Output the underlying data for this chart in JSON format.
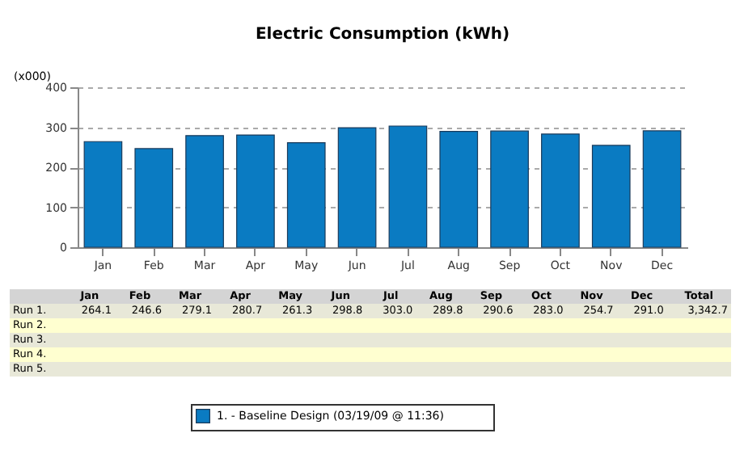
{
  "chart_data": {
    "type": "bar",
    "title": "Electric Consumption (kWh)",
    "ylabel": "(x000)",
    "categories": [
      "Jan",
      "Feb",
      "Mar",
      "Apr",
      "May",
      "Jun",
      "Jul",
      "Aug",
      "Sep",
      "Oct",
      "Nov",
      "Dec"
    ],
    "series": [
      {
        "name": "1.            - Baseline Design  (03/19/09 @ 11:36)",
        "color": "#0a7bc2",
        "values": [
          264.1,
          246.6,
          279.1,
          280.7,
          261.3,
          298.8,
          303.0,
          289.8,
          290.6,
          283.0,
          254.7,
          291.0
        ],
        "value_labels": [
          "264.1",
          "246.6",
          "279.1",
          "280.7",
          "261.3",
          "298.8",
          "303.0",
          "289.8",
          "290.6",
          "283.0",
          "254.7",
          "291.0"
        ]
      }
    ],
    "annotations": [
      "Run 1.",
      "Run 2.",
      "Run 3.",
      "Run 4.",
      "Run 5.",
      "Total",
      "3,342.7"
    ],
    "ylim": [
      0,
      400
    ],
    "yticks": [
      0,
      100,
      200,
      300,
      400
    ],
    "grid": "y",
    "legend": "bottom"
  }
}
